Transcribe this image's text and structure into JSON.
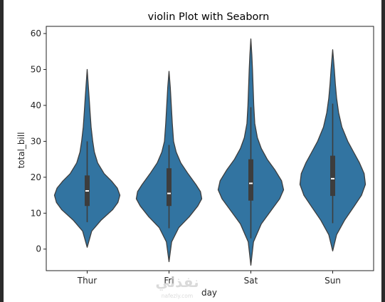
{
  "chart_data": {
    "type": "violin",
    "title": "violin Plot with Seaborn",
    "xlabel": "day",
    "ylabel": "total_bill",
    "categories": [
      "Thur",
      "Fri",
      "Sat",
      "Sun"
    ],
    "ylim": [
      -6,
      62
    ],
    "yticks": [
      0,
      10,
      20,
      30,
      40,
      50,
      60
    ],
    "grid": false,
    "colors": {
      "fill": "#3274a1",
      "edge": "#3d3d3d",
      "box": "#3d3d3d",
      "median": "#ffffff"
    },
    "violins": [
      {
        "category": "Thur",
        "min": 7.5,
        "q1": 12,
        "median": 16.2,
        "q3": 20.5,
        "max": 30,
        "kde_min": 0.5,
        "kde_max": 50,
        "profile": [
          [
            0.5,
            0.0
          ],
          [
            5,
            0.14
          ],
          [
            8,
            0.42
          ],
          [
            11,
            0.78
          ],
          [
            13,
            0.94
          ],
          [
            15,
            1.0
          ],
          [
            17,
            0.92
          ],
          [
            19,
            0.74
          ],
          [
            21,
            0.52
          ],
          [
            24,
            0.32
          ],
          [
            27,
            0.22
          ],
          [
            30,
            0.17
          ],
          [
            34,
            0.12
          ],
          [
            38,
            0.09
          ],
          [
            42,
            0.06
          ],
          [
            46,
            0.03
          ],
          [
            50,
            0.0
          ]
        ]
      },
      {
        "category": "Fri",
        "min": 5.8,
        "q1": 12,
        "median": 15.5,
        "q3": 22.5,
        "max": 29,
        "kde_min": -3.5,
        "kde_max": 49.5,
        "profile": [
          [
            -3.5,
            0.0
          ],
          [
            2,
            0.08
          ],
          [
            6,
            0.3
          ],
          [
            9,
            0.62
          ],
          [
            12,
            0.88
          ],
          [
            14,
            1.0
          ],
          [
            16,
            0.96
          ],
          [
            18,
            0.82
          ],
          [
            21,
            0.58
          ],
          [
            24,
            0.36
          ],
          [
            27,
            0.22
          ],
          [
            30,
            0.14
          ],
          [
            35,
            0.1
          ],
          [
            40,
            0.07
          ],
          [
            45,
            0.04
          ],
          [
            49.5,
            0.0
          ]
        ]
      },
      {
        "category": "Sat",
        "min": 3,
        "q1": 13.5,
        "median": 18.3,
        "q3": 25,
        "max": 39.5,
        "kde_min": -4.5,
        "kde_max": 58.5,
        "profile": [
          [
            -4.5,
            0.0
          ],
          [
            2,
            0.08
          ],
          [
            7,
            0.32
          ],
          [
            11,
            0.64
          ],
          [
            14,
            0.88
          ],
          [
            16.5,
            1.0
          ],
          [
            19,
            0.94
          ],
          [
            22,
            0.74
          ],
          [
            25,
            0.5
          ],
          [
            28,
            0.32
          ],
          [
            31,
            0.2
          ],
          [
            35,
            0.12
          ],
          [
            40,
            0.09
          ],
          [
            45,
            0.07
          ],
          [
            50,
            0.05
          ],
          [
            54,
            0.03
          ],
          [
            58.5,
            0.0
          ]
        ]
      },
      {
        "category": "Sun",
        "min": 7.2,
        "q1": 14.8,
        "median": 19.6,
        "q3": 26,
        "max": 40.5,
        "kde_min": -0.5,
        "kde_max": 55.5,
        "profile": [
          [
            -0.5,
            0.0
          ],
          [
            4,
            0.12
          ],
          [
            8,
            0.36
          ],
          [
            12,
            0.66
          ],
          [
            15,
            0.88
          ],
          [
            18,
            1.0
          ],
          [
            21,
            0.96
          ],
          [
            24,
            0.82
          ],
          [
            27,
            0.64
          ],
          [
            30,
            0.46
          ],
          [
            34,
            0.28
          ],
          [
            38,
            0.18
          ],
          [
            42,
            0.12
          ],
          [
            46,
            0.08
          ],
          [
            50,
            0.05
          ],
          [
            55.5,
            0.0
          ]
        ]
      }
    ]
  },
  "watermark": {
    "main": "نفذلي",
    "sub": "nafezly.com"
  }
}
